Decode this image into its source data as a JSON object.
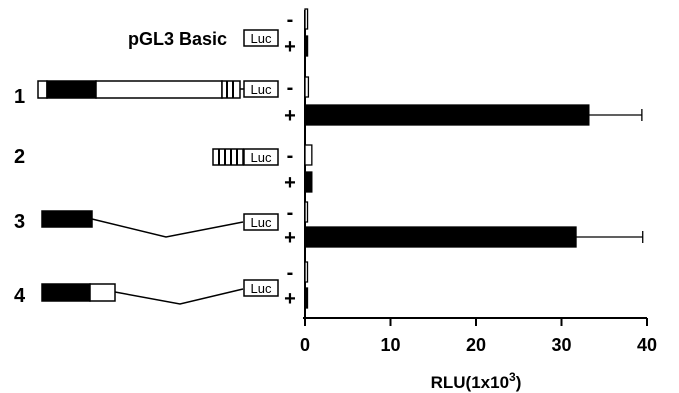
{
  "chart_data": {
    "type": "bar",
    "orientation": "horizontal",
    "xlabel": "RLU(1x10³)",
    "xlabel_base": "RLU(1x10",
    "xlabel_exp": "3",
    "xlabel_close": ")",
    "xlim": [
      0,
      40
    ],
    "xticks": [
      "0",
      "10",
      "20",
      "30",
      "40"
    ],
    "grid": false,
    "constructs": [
      {
        "label": "pGL3 Basic",
        "luc": "Luc",
        "bars": [
          {
            "sign": "-",
            "value": 0.3,
            "error": 0,
            "fill": "#ffffff"
          },
          {
            "sign": "+",
            "value": 0.3,
            "error": 0,
            "fill": "#000000"
          }
        ]
      },
      {
        "label": "1",
        "luc": "Luc",
        "bars": [
          {
            "sign": "-",
            "value": 0.4,
            "error": 0,
            "fill": "#ffffff"
          },
          {
            "sign": "+",
            "value": 33.2,
            "error": 6.2,
            "fill": "#000000"
          }
        ]
      },
      {
        "label": "2",
        "luc": "Luc",
        "bars": [
          {
            "sign": "-",
            "value": 0.8,
            "error": 0,
            "fill": "#ffffff"
          },
          {
            "sign": "+",
            "value": 0.8,
            "error": 0,
            "fill": "#000000"
          }
        ]
      },
      {
        "label": "3",
        "luc": "Luc",
        "bars": [
          {
            "sign": "-",
            "value": 0.2,
            "error": 0,
            "fill": "#ffffff"
          },
          {
            "sign": "+",
            "value": 31.7,
            "error": 7.8,
            "fill": "#000000"
          }
        ]
      },
      {
        "label": "4",
        "luc": "Luc",
        "bars": [
          {
            "sign": "-",
            "value": 0.2,
            "error": 0,
            "fill": "#ffffff"
          },
          {
            "sign": "+",
            "value": 0.2,
            "error": 0,
            "fill": "#000000"
          }
        ]
      }
    ]
  }
}
